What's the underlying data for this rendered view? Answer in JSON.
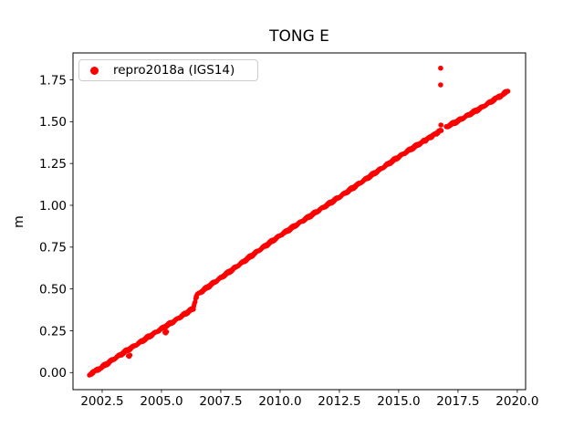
{
  "figure": {
    "background": "#ffffff",
    "frame_color": "#000000"
  },
  "legend": {
    "label": "repro2018a (IGS14)",
    "marker": "red-dot",
    "marker_color": "#ff0000",
    "border_color": "#cccccc"
  },
  "chart_data": {
    "type": "scatter",
    "title": "TONG E",
    "xlabel": "",
    "ylabel": "m",
    "xlim": [
      2001.27,
      2020.35
    ],
    "ylim": [
      -0.102,
      1.911
    ],
    "xticks": [
      2002.5,
      2005.0,
      2007.5,
      2010.0,
      2012.5,
      2015.0,
      2017.5,
      2020.0
    ],
    "xtick_labels": [
      "2002.5",
      "2005.0",
      "2007.5",
      "2010.0",
      "2012.5",
      "2015.0",
      "2017.5",
      "2020.0"
    ],
    "yticks": [
      0.0,
      0.25,
      0.5,
      0.75,
      1.0,
      1.25,
      1.5,
      1.75
    ],
    "ytick_labels": [
      "0.00",
      "0.25",
      "0.50",
      "0.75",
      "1.00",
      "1.25",
      "1.50",
      "1.75"
    ],
    "grid": false,
    "legend_position": "upper left",
    "sampling_step_years": 0.03,
    "series": [
      {
        "name": "repro2018a (IGS14)",
        "color": "#ff0000",
        "marker": "dot",
        "trend_anchors": [
          [
            2001.96,
            -0.012
          ],
          [
            2002.5,
            0.034
          ],
          [
            2003.0,
            0.082
          ],
          [
            2003.5,
            0.128
          ],
          [
            2004.0,
            0.172
          ],
          [
            2004.5,
            0.218
          ],
          [
            2005.0,
            0.262
          ],
          [
            2005.5,
            0.305
          ],
          [
            2006.0,
            0.352
          ],
          [
            2006.35,
            0.385
          ],
          [
            2006.38,
            0.405
          ],
          [
            2006.42,
            0.428
          ],
          [
            2006.46,
            0.45
          ],
          [
            2006.5,
            0.465
          ],
          [
            2007.0,
            0.517
          ],
          [
            2007.5,
            0.567
          ],
          [
            2008.0,
            0.617
          ],
          [
            2008.5,
            0.668
          ],
          [
            2009.0,
            0.72
          ],
          [
            2009.5,
            0.77
          ],
          [
            2010.0,
            0.82
          ],
          [
            2010.5,
            0.866
          ],
          [
            2011.0,
            0.912
          ],
          [
            2011.5,
            0.958
          ],
          [
            2012.0,
            1.004
          ],
          [
            2012.5,
            1.05
          ],
          [
            2013.0,
            1.098
          ],
          [
            2013.5,
            1.146
          ],
          [
            2014.0,
            1.194
          ],
          [
            2014.5,
            1.242
          ],
          [
            2015.0,
            1.29
          ],
          [
            2015.5,
            1.335
          ],
          [
            2016.0,
            1.379
          ],
          [
            2016.4,
            1.414
          ],
          [
            2016.8,
            1.45
          ],
          [
            2017.0,
            1.468
          ],
          [
            2017.5,
            1.505
          ],
          [
            2018.0,
            1.545
          ],
          [
            2018.5,
            1.585
          ],
          [
            2019.0,
            1.63
          ],
          [
            2019.3,
            1.655
          ],
          [
            2019.6,
            1.682
          ]
        ],
        "step_jump": {
          "time": 2006.4,
          "from": 0.385,
          "to": 0.465
        },
        "gaps": [
          [
            2016.8,
            2016.99
          ]
        ],
        "low_points": [
          [
            2003.6,
            0.1
          ],
          [
            2003.64,
            0.096
          ],
          [
            2003.68,
            0.104
          ],
          [
            2005.14,
            0.24
          ],
          [
            2005.18,
            0.236
          ],
          [
            2005.22,
            0.244
          ]
        ],
        "outliers": [
          [
            2016.77,
            1.82
          ],
          [
            2016.77,
            1.72
          ],
          [
            2016.78,
            1.48
          ]
        ]
      }
    ]
  }
}
